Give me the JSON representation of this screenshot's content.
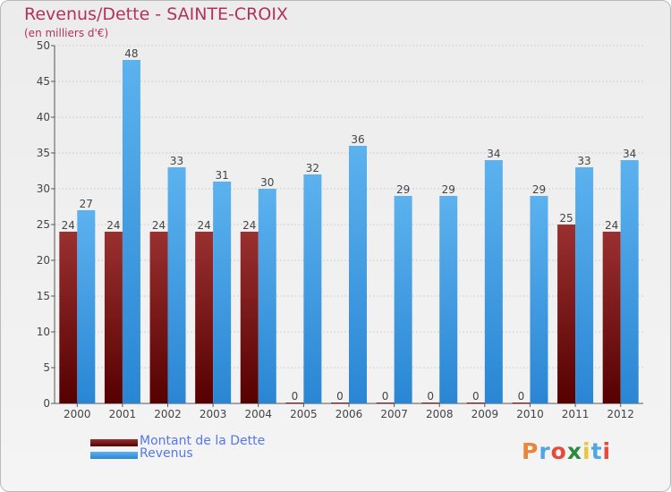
{
  "chart_data": {
    "type": "bar",
    "title": "Revenus/Dette - SAINTE-CROIX",
    "subtitle": "(en milliers d'€)",
    "categories": [
      "2000",
      "2001",
      "2002",
      "2003",
      "2004",
      "2005",
      "2006",
      "2007",
      "2008",
      "2009",
      "2010",
      "2011",
      "2012"
    ],
    "series": [
      {
        "name": "Montant de la Dette",
        "color": "#7a1a1a",
        "values": [
          24,
          24,
          24,
          24,
          24,
          0,
          0,
          0,
          0,
          0,
          0,
          25,
          24
        ]
      },
      {
        "name": "Revenus",
        "color": "#4ea6e6",
        "values": [
          27,
          48,
          33,
          31,
          30,
          32,
          36,
          29,
          29,
          34,
          29,
          33,
          34
        ]
      }
    ],
    "ylim": [
      0,
      50
    ],
    "yticks": [
      0,
      5,
      10,
      15,
      20,
      25,
      30,
      35,
      40,
      45,
      50
    ],
    "grid": true,
    "legend": "bottom-left"
  },
  "logo": {
    "text": "Proxiti",
    "colors": [
      "#e8873a",
      "#4ea6e6",
      "#e84a3a",
      "#2e8b3e",
      "#e8c83a",
      "#4ea6e6",
      "#e84a3a"
    ]
  }
}
